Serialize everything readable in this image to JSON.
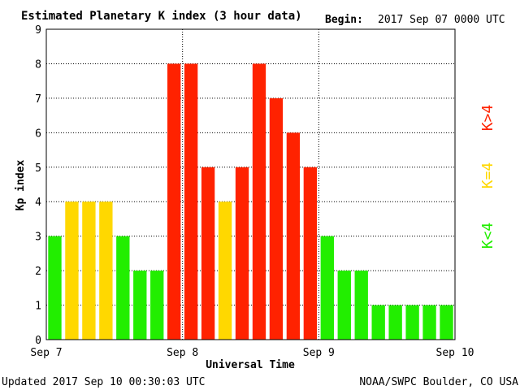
{
  "header": {
    "title": "Estimated Planetary K index (3 hour data)",
    "begin_label": "Begin:",
    "begin_value": "2017 Sep 07 0000 UTC"
  },
  "footer": {
    "updated": "Updated 2017 Sep 10 00:30:03 UTC",
    "source": "NOAA/SWPC Boulder, CO USA"
  },
  "legend": [
    {
      "label": "K<4",
      "color": "#22ee00"
    },
    {
      "label": "K=4",
      "color": "#ffd800"
    },
    {
      "label": "K>4",
      "color": "#ff2200"
    }
  ],
  "colors": {
    "low": "#22ee00",
    "moderate": "#ffd800",
    "storm": "#ff2200"
  },
  "chart_data": {
    "type": "bar",
    "title": "Estimated Planetary K index (3 hour data)",
    "xlabel": "Universal Time",
    "ylabel": "Kp index",
    "ylim": [
      0,
      9
    ],
    "yticks": [
      "0",
      "1",
      "2",
      "3",
      "4",
      "5",
      "6",
      "7",
      "8",
      "9"
    ],
    "day_labels": [
      "Sep 7",
      "Sep 8",
      "Sep 9",
      "Sep 10"
    ],
    "interval_hours": 3,
    "values": [
      3,
      4,
      4,
      4,
      3,
      2,
      2,
      8,
      8,
      5,
      4,
      5,
      8,
      7,
      6,
      5,
      3,
      2,
      2,
      1,
      1,
      1,
      1,
      1
    ],
    "grid": true,
    "legend_position": "right"
  }
}
